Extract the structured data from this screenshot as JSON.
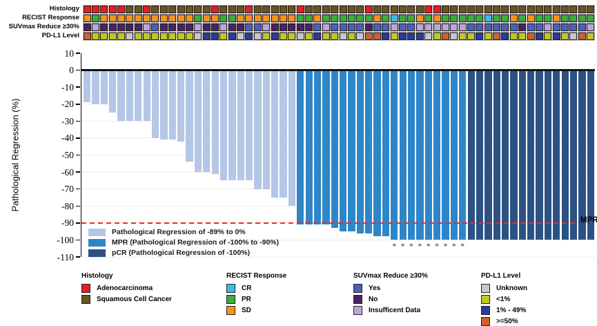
{
  "chart_data": {
    "type": "bar",
    "subtype": "waterfall-with-annotation-tracks",
    "ylabel": "Pathological Regression (%)",
    "ylim": [
      -110,
      10
    ],
    "yticks": [
      10,
      0,
      -10,
      -20,
      -30,
      -40,
      -50,
      -60,
      -70,
      -80,
      -90,
      -100,
      -110
    ],
    "grid": "horizontal-light",
    "n_patients": 60,
    "values": [
      -19,
      -20,
      -20,
      -25,
      -30,
      -30,
      -30,
      -30,
      -40,
      -41,
      -41,
      -42,
      -54,
      -60,
      -60,
      -61,
      -65,
      -65,
      -65,
      -65,
      -70,
      -70,
      -75,
      -75,
      -80,
      -91,
      -91,
      -91,
      -91,
      -93,
      -95,
      -95,
      -96,
      -96,
      -98,
      -98,
      -100,
      -100,
      -100,
      -100,
      -100,
      -100,
      -100,
      -100,
      -100,
      -100,
      -100,
      -100,
      -100,
      -100,
      -100,
      -100,
      -100,
      -100,
      -100,
      -100,
      -100,
      -100,
      -100,
      -100
    ],
    "group_counts": {
      "regression": 25,
      "mpr": 20,
      "pcr": 15
    },
    "group_colors": {
      "regression": "#B4C7E7",
      "mpr": "#2E86C8",
      "pcr": "#2B5283"
    },
    "asterisk_columns": [
      37,
      38,
      39,
      40,
      41,
      42,
      43,
      44,
      45
    ],
    "asterisk_symbol": "*",
    "reference_line": {
      "y": -90,
      "label": "MPR",
      "color": "#EF2929"
    },
    "tracks": [
      {
        "label": "Histology",
        "cells": "AAAAASSASSSSSSSASSSASSSSSASSSSSSSASSSSSSAASSSSSSSSSSSSSSSSSS",
        "palette": {
          "A": "#E31F21",
          "S": "#6A5420"
        },
        "legend": {
          "A": "Adenocarcinoma",
          "S": "Squamous Cell Cancer"
        }
      },
      {
        "label": "RECIST Response",
        "cells": "DPDDDDDDDDDDDPDDPPDDDDDDDPPDPPPPPPDPCPPDPDPPPPPCPPDPDPPDPPPP",
        "palette": {
          "C": "#3FB9E9",
          "P": "#3BAC3E",
          "D": "#F6921E"
        },
        "legend": {
          "C": "CR",
          "P": "PR",
          "D": "SD"
        }
      },
      {
        "label": "SUVmax Reduce ≥30%",
        "cells": "XIXXXXXIYXXXXIXXIXXYYIXXXXXYIYYYYXYYIYYIIIIIIYYYYYYXYYIYYYYI",
        "palette": {
          "Y": "#4C60BE",
          "X": "#4B2160",
          "I": "#BCA6D8"
        },
        "legend": {
          "Y": "Yes",
          "X": "No",
          "I": "Insufficent Data"
        }
      },
      {
        "label": "PD-L1 Level",
        "cells": "HLLLLULLLLLLLUMMLMUMULMLLULMLLULUHHMLMMMULHULLMLHMLLHMLMLUHL",
        "palette": {
          "U": "#C7C7C9",
          "L": "#C2C724",
          "M": "#2B3B9C",
          "H": "#CE6130"
        },
        "legend": {
          "U": "Unknown",
          "L": "<1%",
          "M": "1% - 49%",
          "H": ">=50%"
        }
      }
    ],
    "plot_legend": [
      {
        "label": "Pathological Regression of -89% to 0%",
        "color": "#B4C7E7"
      },
      {
        "label": "MPR (Pathological Regression of -100% to -90%)",
        "color": "#2E86C8"
      },
      {
        "label": "pCR (Pathological Regression of -100%)",
        "color": "#2B5283"
      }
    ],
    "bottom_legend": [
      {
        "header": "Histology",
        "items": [
          {
            "label": "Adenocarcinoma",
            "color": "#E31F21"
          },
          {
            "label": "Squamous Cell Cancer",
            "color": "#6A5420"
          }
        ]
      },
      {
        "header": "RECIST Response",
        "items": [
          {
            "label": "CR",
            "color": "#3FB9E9"
          },
          {
            "label": "PR",
            "color": "#3BAC3E"
          },
          {
            "label": "SD",
            "color": "#F6921E"
          }
        ]
      },
      {
        "header": "SUVmax Reduce ≥30%",
        "items": [
          {
            "label": "Yes",
            "color": "#4C60BE"
          },
          {
            "label": "No",
            "color": "#4B2160"
          },
          {
            "label": "Insufficent Data",
            "color": "#BCA6D8"
          }
        ]
      },
      {
        "header": "PD-L1 Level",
        "items": [
          {
            "label": "Unknown",
            "color": "#C7C7C9"
          },
          {
            "label": "<1%",
            "color": "#C2C724"
          },
          {
            "label": "1% - 49%",
            "color": "#2B3B9C"
          },
          {
            "label": ">=50%",
            "color": "#CE6130"
          }
        ]
      }
    ]
  }
}
